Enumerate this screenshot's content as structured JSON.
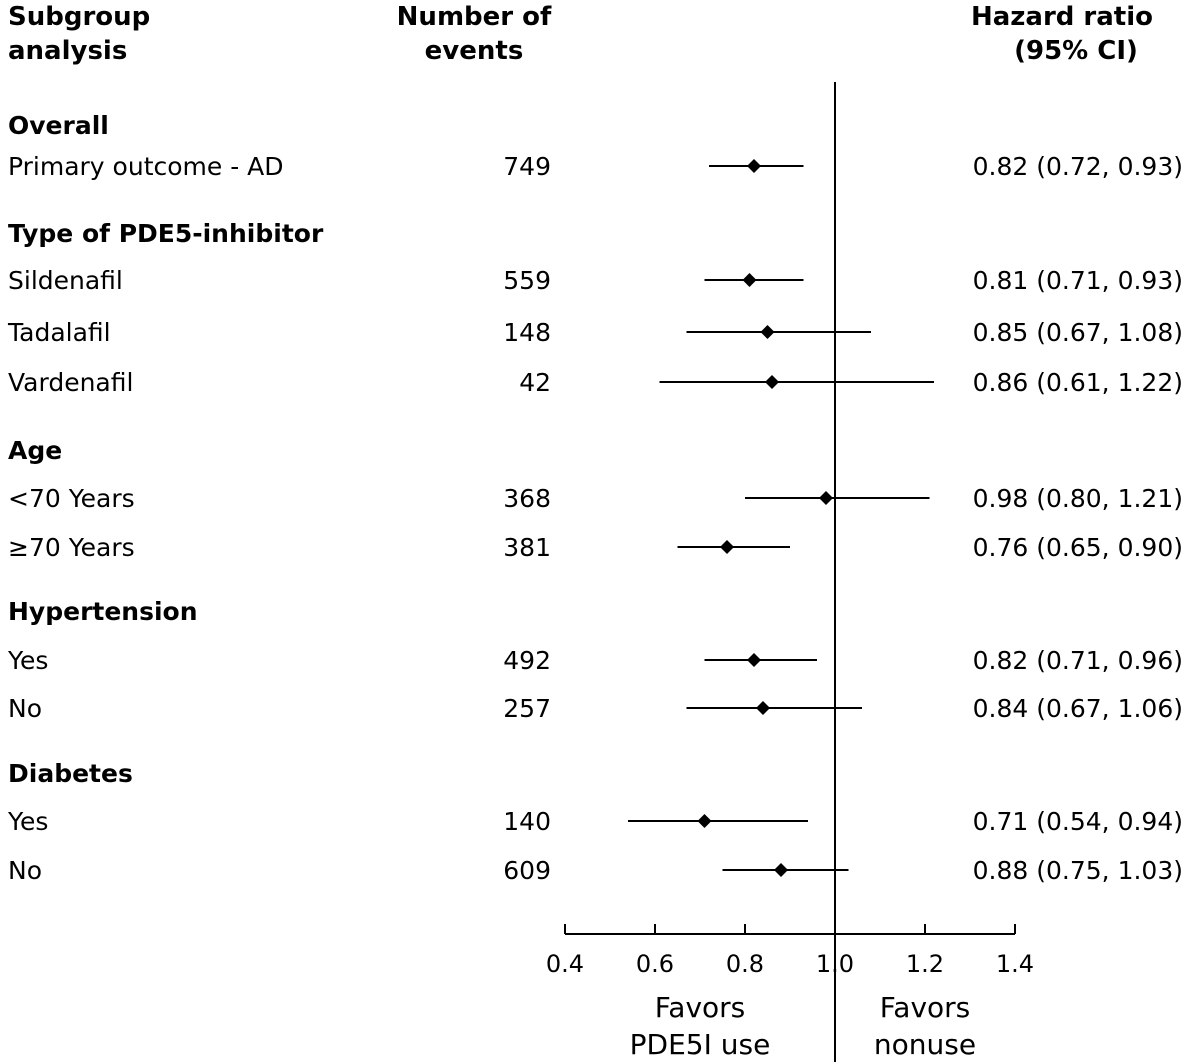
{
  "headers": {
    "subgroup": [
      "Subgroup",
      "analysis"
    ],
    "events": [
      "Number of",
      "events"
    ],
    "hr": [
      "Hazard ratio",
      "(95% CI)"
    ]
  },
  "favors": {
    "left": [
      "Favors",
      "PDE5I use"
    ],
    "right": [
      "Favors",
      "nonuse"
    ]
  },
  "chart_data": {
    "type": "forest",
    "title": "",
    "xlabel": "",
    "xlim": [
      0.4,
      1.4
    ],
    "reference_line": 1.0,
    "xticks": [
      "0.4",
      "0.6",
      "0.8",
      "1.0",
      "1.2",
      "1.4"
    ],
    "rows": [
      {
        "kind": "group",
        "label": "Overall"
      },
      {
        "kind": "item",
        "label": "Primary outcome - AD",
        "events": "749",
        "hr": 0.82,
        "lo": 0.72,
        "hi": 0.93,
        "text": "0.82 (0.72, 0.93)"
      },
      {
        "kind": "group",
        "label": "Type of PDE5-inhibitor"
      },
      {
        "kind": "item",
        "label": "Sildenafil",
        "events": "559",
        "hr": 0.81,
        "lo": 0.71,
        "hi": 0.93,
        "text": "0.81 (0.71, 0.93)"
      },
      {
        "kind": "item",
        "label": "Tadalafil",
        "events": "148",
        "hr": 0.85,
        "lo": 0.67,
        "hi": 1.08,
        "text": "0.85 (0.67, 1.08)"
      },
      {
        "kind": "item",
        "label": "Vardenafil",
        "events": "42",
        "hr": 0.86,
        "lo": 0.61,
        "hi": 1.22,
        "text": "0.86 (0.61, 1.22)"
      },
      {
        "kind": "group",
        "label": "Age"
      },
      {
        "kind": "item",
        "label": "<70 Years",
        "events": "368",
        "hr": 0.98,
        "lo": 0.8,
        "hi": 1.21,
        "text": "0.98 (0.80, 1.21)"
      },
      {
        "kind": "item",
        "label": "≥70 Years",
        "events": "381",
        "hr": 0.76,
        "lo": 0.65,
        "hi": 0.9,
        "text": "0.76 (0.65, 0.90)"
      },
      {
        "kind": "group",
        "label": "Hypertension"
      },
      {
        "kind": "item",
        "label": "Yes",
        "events": "492",
        "hr": 0.82,
        "lo": 0.71,
        "hi": 0.96,
        "text": "0.82 (0.71, 0.96)"
      },
      {
        "kind": "item",
        "label": "No",
        "events": "257",
        "hr": 0.84,
        "lo": 0.67,
        "hi": 1.06,
        "text": "0.84 (0.67, 1.06)"
      },
      {
        "kind": "group",
        "label": "Diabetes"
      },
      {
        "kind": "item",
        "label": "Yes",
        "events": "140",
        "hr": 0.71,
        "lo": 0.54,
        "hi": 0.94,
        "text": "0.71 (0.54, 0.94)"
      },
      {
        "kind": "item",
        "label": "No",
        "events": "609",
        "hr": 0.88,
        "lo": 0.75,
        "hi": 1.03,
        "text": "0.88 (0.75, 1.03)"
      }
    ]
  }
}
